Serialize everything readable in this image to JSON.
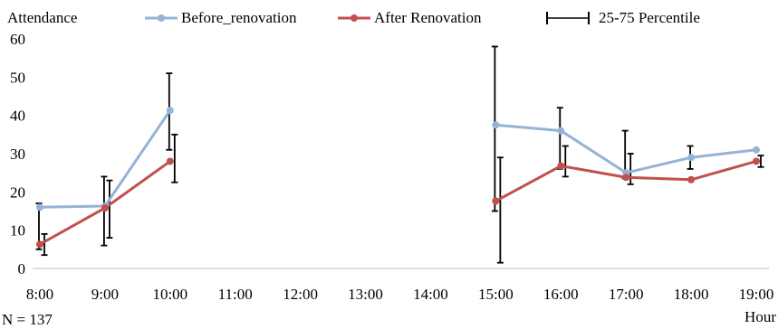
{
  "chart_data": {
    "type": "line",
    "ylabel": "Attendance",
    "xlabel": "Hour",
    "note": "N = 137",
    "categories": [
      "8:00",
      "9:00",
      "10:00",
      "11:00",
      "12:00",
      "13:00",
      "14:00",
      "15:00",
      "16:00",
      "17:00",
      "18:00",
      "19:00"
    ],
    "ylim": [
      0,
      60
    ],
    "yticks": [
      "0",
      "10",
      "20",
      "30",
      "40",
      "50",
      "60"
    ],
    "grid": false,
    "legend_position": "top",
    "errorbar_label": "25-75 Percentile",
    "series": [
      {
        "name": "Before_renovation",
        "color": "#95b3d7",
        "values": [
          16,
          16.3,
          41.3,
          null,
          null,
          null,
          null,
          37.5,
          36,
          25,
          29,
          31
        ],
        "error_low": [
          5,
          6,
          31,
          null,
          null,
          null,
          null,
          15,
          26,
          23.5,
          26,
          null
        ],
        "error_high": [
          17,
          24,
          51,
          null,
          null,
          null,
          null,
          58,
          42,
          36,
          32,
          null
        ]
      },
      {
        "name": "After Renovation",
        "color": "#c0504d",
        "values": [
          6.3,
          15.8,
          28,
          null,
          null,
          null,
          null,
          17.6,
          26.8,
          23.8,
          23.2,
          28
        ],
        "error_low": [
          3.5,
          8,
          22.5,
          null,
          null,
          null,
          null,
          1.5,
          24,
          22,
          null,
          26.5
        ],
        "error_high": [
          9,
          23,
          35,
          null,
          null,
          null,
          null,
          29,
          32,
          30,
          null,
          29.5
        ]
      }
    ]
  }
}
